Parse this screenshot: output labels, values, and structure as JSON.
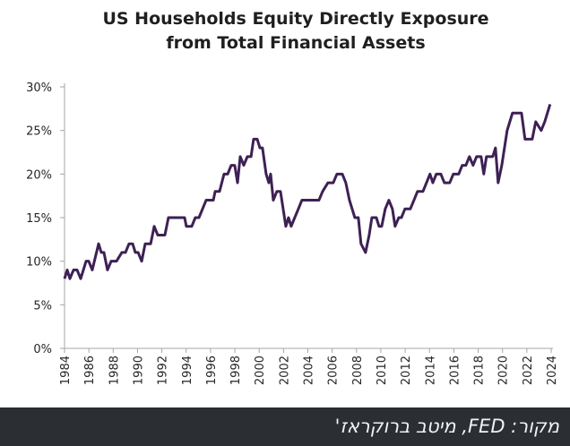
{
  "chart_data": {
    "type": "line",
    "title": [
      "US Households Equity Directly Exposure",
      "from Total Financial Assets"
    ],
    "x": [
      1984.0,
      1984.22,
      1984.44,
      1984.74,
      1985.03,
      1985.33,
      1985.77,
      1985.99,
      1986.28,
      1986.8,
      1987.02,
      1987.24,
      1987.53,
      1987.83,
      1988.27,
      1988.71,
      1989.01,
      1989.3,
      1989.6,
      1989.82,
      1990.05,
      1990.34,
      1990.63,
      1991.08,
      1991.37,
      1991.66,
      1992.25,
      1992.54,
      1993.43,
      1993.87,
      1994.01,
      1994.46,
      1994.75,
      1995.05,
      1995.64,
      1996.23,
      1996.38,
      1996.74,
      1997.11,
      1997.41,
      1997.7,
      1997.99,
      1998.22,
      1998.44,
      1998.73,
      1999.03,
      1999.33,
      1999.54,
      1999.84,
      2000.06,
      2000.27,
      2000.57,
      2000.79,
      2000.94,
      2001.16,
      2001.45,
      2001.75,
      2001.97,
      2002.19,
      2002.41,
      2002.63,
      2002.92,
      2003.22,
      2003.51,
      2004.47,
      2004.91,
      2005.21,
      2005.65,
      2006.09,
      2006.39,
      2006.83,
      2007.12,
      2007.42,
      2007.86,
      2008.15,
      2008.37,
      2008.74,
      2009.04,
      2009.26,
      2009.63,
      2009.85,
      2010.07,
      2010.36,
      2010.66,
      2010.95,
      2011.17,
      2011.47,
      2011.69,
      2011.98,
      2012.42,
      2012.72,
      2013.01,
      2013.46,
      2013.75,
      2014.04,
      2014.27,
      2014.56,
      2014.93,
      2015.22,
      2015.66,
      2015.96,
      2016.4,
      2016.69,
      2016.99,
      2017.28,
      2017.58,
      2017.87,
      2018.24,
      2018.46,
      2018.68,
      2019.2,
      2019.42,
      2019.64,
      2019.94,
      2020.38,
      2020.82,
      2021.56,
      2021.85,
      2022.44,
      2022.73,
      2023.18,
      2023.47,
      2023.91
    ],
    "series": [
      {
        "color": "#3e2154",
        "values": [
          8,
          9,
          8,
          9,
          9,
          8,
          10,
          10,
          9,
          12,
          11,
          11,
          9,
          10,
          10,
          11,
          11,
          12,
          12,
          11,
          11,
          10,
          12,
          12,
          14,
          13,
          13,
          15,
          15,
          15,
          14,
          14,
          15,
          15,
          17,
          17,
          18,
          18,
          20,
          20,
          21,
          21,
          19,
          22,
          21,
          22,
          22,
          24,
          24,
          23,
          23,
          20,
          19,
          20,
          17,
          18,
          18,
          16,
          14,
          15,
          14,
          15,
          16,
          17,
          17,
          17,
          18,
          19,
          19,
          20,
          20,
          19,
          17,
          15,
          15,
          12,
          11,
          13,
          15,
          15,
          14,
          14,
          16,
          17,
          16,
          14,
          15,
          15,
          16,
          16,
          17,
          18,
          18,
          19,
          20,
          19,
          20,
          20,
          19,
          19,
          20,
          20,
          21,
          21,
          22,
          21,
          22,
          22,
          20,
          22,
          22,
          23,
          19,
          21,
          25,
          27,
          27,
          24,
          24,
          26,
          25,
          26,
          28
        ]
      }
    ],
    "xlim": [
      1984,
      2024
    ],
    "xticks": [
      1984,
      1986,
      1988,
      1990,
      1992,
      1994,
      1996,
      1998,
      2000,
      2002,
      2004,
      2006,
      2008,
      2010,
      2012,
      2014,
      2016,
      2018,
      2020,
      2022,
      2024
    ],
    "ylim": [
      0,
      30
    ],
    "yticks": [
      {
        "value": 0,
        "label": "0%"
      },
      {
        "value": 5,
        "label": "5%"
      },
      {
        "value": 10,
        "label": "10%"
      },
      {
        "value": 15,
        "label": "15%"
      },
      {
        "value": 20,
        "label": "20%"
      },
      {
        "value": 25,
        "label": "25%"
      },
      {
        "value": 30,
        "label": "30%"
      }
    ],
    "grid": false
  },
  "caption": "מקור: FED, מיטב ברוקראז'"
}
